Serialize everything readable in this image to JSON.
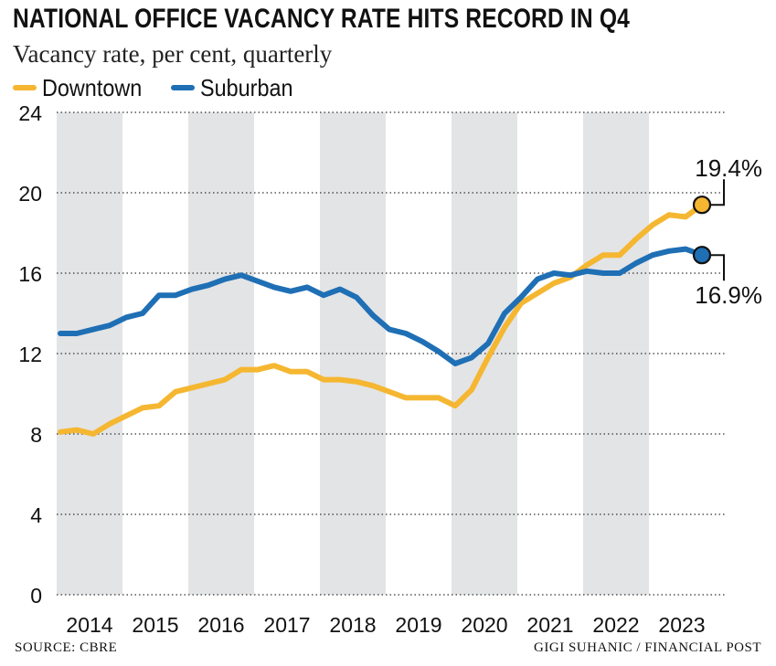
{
  "header": {
    "title": "NATIONAL OFFICE VACANCY RATE HITS RECORD IN Q4",
    "subtitle": "Vacancy rate, per cent, quarterly"
  },
  "legend": [
    {
      "label": "Downtown",
      "color": "#f5b731"
    },
    {
      "label": "Suburban",
      "color": "#1f6fb5"
    }
  ],
  "footer": {
    "source": "SOURCE: CBRE",
    "credit": "GIGI SUHANIC / FINANCIAL POST"
  },
  "colors": {
    "downtown": "#f5b731",
    "suburban": "#1f6fb5",
    "band": "#e3e4e6",
    "grid": "#333333"
  },
  "chart_data": {
    "type": "line",
    "title": "NATIONAL OFFICE VACANCY RATE HITS RECORD IN Q4",
    "subtitle": "Vacancy rate, per cent, quarterly",
    "ylim": [
      0,
      24
    ],
    "yticks": [
      0,
      4,
      8,
      12,
      16,
      20,
      24
    ],
    "xticks": [
      "2014",
      "2015",
      "2016",
      "2017",
      "2018",
      "2019",
      "2020",
      "2021",
      "2022",
      "2023"
    ],
    "x": [
      "2014 Q1",
      "2014 Q2",
      "2014 Q3",
      "2014 Q4",
      "2015 Q1",
      "2015 Q2",
      "2015 Q3",
      "2015 Q4",
      "2016 Q1",
      "2016 Q2",
      "2016 Q3",
      "2016 Q4",
      "2017 Q1",
      "2017 Q2",
      "2017 Q3",
      "2017 Q4",
      "2018 Q1",
      "2018 Q2",
      "2018 Q3",
      "2018 Q4",
      "2019 Q1",
      "2019 Q2",
      "2019 Q3",
      "2019 Q4",
      "2020 Q1",
      "2020 Q2",
      "2020 Q3",
      "2020 Q4",
      "2021 Q1",
      "2021 Q2",
      "2021 Q3",
      "2021 Q4",
      "2022 Q1",
      "2022 Q2",
      "2022 Q3",
      "2022 Q4",
      "2023 Q1",
      "2023 Q2",
      "2023 Q3",
      "2023 Q4"
    ],
    "grid": "horizontal dotted",
    "shaded_years": [
      "2014",
      "2016",
      "2018",
      "2020",
      "2022"
    ],
    "legend_position": "top-left",
    "series": [
      {
        "name": "Downtown",
        "color": "#f5b731",
        "values": [
          8.1,
          8.2,
          8.0,
          8.5,
          8.9,
          9.3,
          9.4,
          10.1,
          10.3,
          10.5,
          10.7,
          11.2,
          11.2,
          11.4,
          11.1,
          11.1,
          10.7,
          10.7,
          10.6,
          10.4,
          10.1,
          9.8,
          9.8,
          9.8,
          9.4,
          10.2,
          11.8,
          13.3,
          14.5,
          15.0,
          15.5,
          15.8,
          16.4,
          16.9,
          16.9,
          17.7,
          18.4,
          18.9,
          18.8,
          19.4
        ],
        "end_label": "19.4%"
      },
      {
        "name": "Suburban",
        "color": "#1f6fb5",
        "values": [
          13.0,
          13.0,
          13.2,
          13.4,
          13.8,
          14.0,
          14.9,
          14.9,
          15.2,
          15.4,
          15.7,
          15.9,
          15.6,
          15.3,
          15.1,
          15.3,
          14.9,
          15.2,
          14.8,
          13.9,
          13.2,
          13.0,
          12.6,
          12.1,
          11.5,
          11.8,
          12.5,
          14.0,
          14.8,
          15.7,
          16.0,
          15.9,
          16.1,
          16.0,
          16.0,
          16.5,
          16.9,
          17.1,
          17.2,
          16.9
        ],
        "end_label": "16.9%"
      }
    ]
  }
}
